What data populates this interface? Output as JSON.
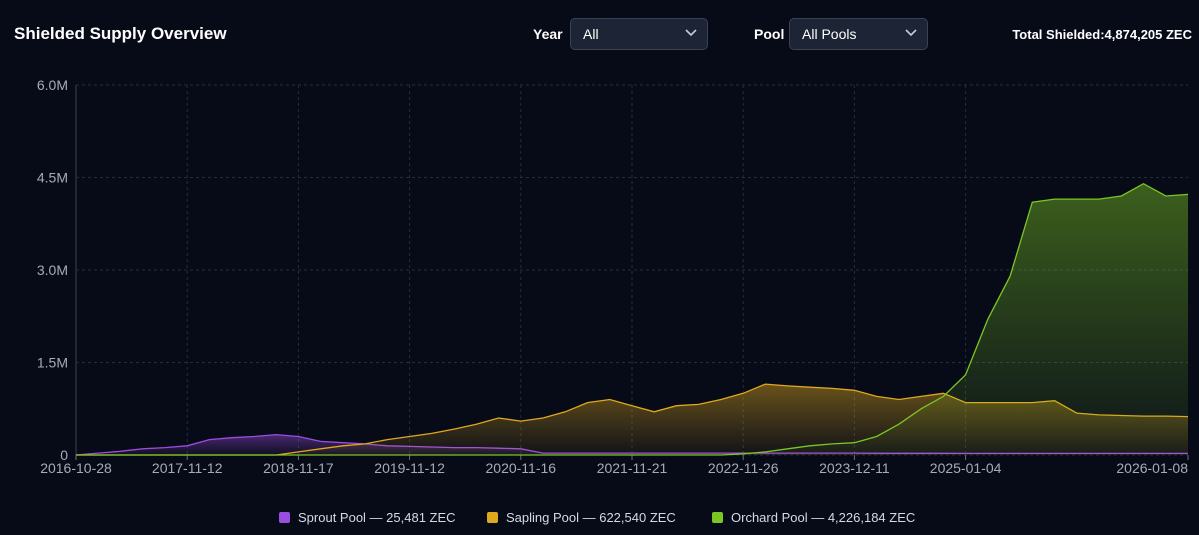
{
  "header": {
    "title": "Shielded Supply Overview",
    "year_label": "Year",
    "year_value": "All",
    "pool_label": "Pool",
    "pool_value": "All Pools",
    "total_label": "Total Shielded:",
    "total_value": "4,874,205 ZEC"
  },
  "chart_data": {
    "type": "area",
    "x": [
      "2016-10-28",
      "2017-01-12",
      "2017-03-29",
      "2017-06-13",
      "2017-08-28",
      "2017-11-12",
      "2018-01-24",
      "2018-04-07",
      "2018-06-19",
      "2018-08-31",
      "2018-11-17",
      "2019-01-27",
      "2019-04-08",
      "2019-06-19",
      "2019-08-30",
      "2019-11-12",
      "2020-01-24",
      "2020-04-06",
      "2020-06-19",
      "2020-09-01",
      "2020-11-16",
      "2021-01-30",
      "2021-04-15",
      "2021-06-30",
      "2021-09-06",
      "2021-11-21",
      "2022-02-04",
      "2022-04-20",
      "2022-07-04",
      "2022-09-15",
      "2022-11-26",
      "2023-02-12",
      "2023-05-02",
      "2023-07-20",
      "2023-10-02",
      "2023-12-11",
      "2024-03-01",
      "2024-05-20",
      "2024-08-08",
      "2024-10-25",
      "2025-01-04",
      "2025-02-10",
      "2025-03-20",
      "2025-04-28",
      "2025-06-05",
      "2025-07-13",
      "2025-08-20",
      "2025-09-27",
      "2025-11-03",
      "2025-12-10",
      "2026-01-08"
    ],
    "series": [
      {
        "name": "Sprout Pool — 25,481 ZEC",
        "color": "#9b4de0",
        "values": [
          0,
          30000,
          60000,
          100000,
          120000,
          150000,
          250000,
          280000,
          300000,
          330000,
          300000,
          220000,
          200000,
          180000,
          150000,
          140000,
          130000,
          120000,
          120000,
          110000,
          100000,
          30000,
          30000,
          30000,
          30000,
          30000,
          30000,
          30000,
          30000,
          30000,
          30000,
          30000,
          30000,
          30000,
          30000,
          30000,
          28000,
          28000,
          27000,
          27000,
          26000,
          26000,
          26000,
          26000,
          26000,
          26000,
          26000,
          25500,
          25500,
          25500,
          25481
        ]
      },
      {
        "name": "Sapling Pool — 622,540 ZEC",
        "color": "#e0a81c",
        "values": [
          0,
          0,
          0,
          0,
          0,
          0,
          0,
          0,
          0,
          0,
          50000,
          100000,
          150000,
          180000,
          250000,
          300000,
          350000,
          420000,
          500000,
          600000,
          550000,
          600000,
          700000,
          850000,
          900000,
          800000,
          700000,
          800000,
          820000,
          900000,
          1000000,
          1150000,
          1120000,
          1100000,
          1080000,
          1050000,
          950000,
          900000,
          950000,
          1000000,
          850000,
          850000,
          850000,
          850000,
          880000,
          680000,
          650000,
          640000,
          630000,
          630000,
          622540
        ]
      },
      {
        "name": "Orchard Pool — 4,226,184 ZEC",
        "color": "#7cc623",
        "values": [
          0,
          0,
          0,
          0,
          0,
          0,
          0,
          0,
          0,
          0,
          0,
          0,
          0,
          0,
          0,
          0,
          0,
          0,
          0,
          0,
          0,
          0,
          0,
          0,
          0,
          0,
          0,
          0,
          0,
          0,
          20000,
          50000,
          100000,
          150000,
          180000,
          200000,
          300000,
          500000,
          750000,
          950000,
          1300000,
          2200000,
          2900000,
          4100000,
          4150000,
          4150000,
          4150000,
          4200000,
          4400000,
          4200000,
          4226184
        ]
      }
    ],
    "xlim": [
      "2016-10-28",
      "2026-01-08"
    ],
    "xticks": [
      "2016-10-28",
      "2017-11-12",
      "2018-11-17",
      "2019-11-12",
      "2020-11-16",
      "2021-11-21",
      "2022-11-26",
      "2023-12-11",
      "2025-01-04",
      "2026-01-08"
    ],
    "ylim": [
      0,
      6000000
    ],
    "yticks": [
      0,
      {
        "value": 1500000,
        "label": "1.5M"
      },
      {
        "value": 3000000,
        "label": "3.0M"
      },
      {
        "value": 4500000,
        "label": "4.5M"
      },
      {
        "value": 6000000,
        "label": "6.0M"
      }
    ],
    "grid": true
  }
}
